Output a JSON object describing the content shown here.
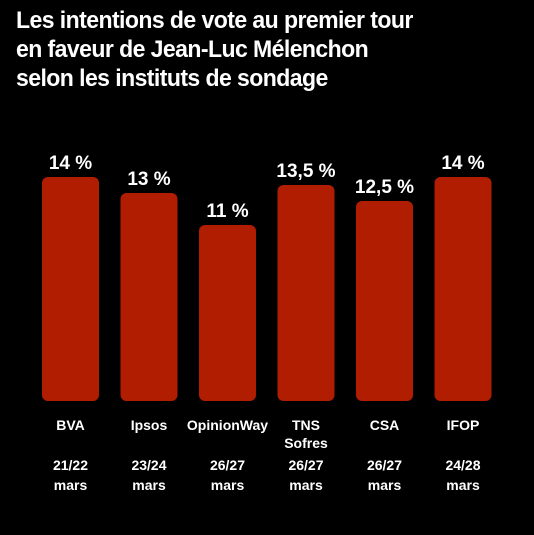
{
  "chart_data": {
    "type": "bar",
    "title": "Les intentions de vote au premier tour\nen faveur de Jean-Luc Mélenchon\nselon les instituts de sondage",
    "categories": [
      [
        "BVA"
      ],
      [
        "Ipsos"
      ],
      [
        "OpinionWay"
      ],
      [
        "TNS",
        "Sofres"
      ],
      [
        "CSA"
      ],
      [
        "IFOP"
      ]
    ],
    "dates": [
      [
        "21/22",
        "mars"
      ],
      [
        "23/24",
        "mars"
      ],
      [
        "26/27",
        "mars"
      ],
      [
        "26/27",
        "mars"
      ],
      [
        "26/27",
        "mars"
      ],
      [
        "24/28",
        "mars"
      ]
    ],
    "values": [
      14,
      13,
      11,
      13.5,
      12.5,
      14
    ],
    "value_labels": [
      "14 %",
      "13 %",
      "11 %",
      "13,5 %",
      "12,5 %",
      "14 %"
    ],
    "xlabel": "",
    "ylabel": "",
    "bar_color": "#b01d00",
    "background": "#000000",
    "text_color": "#ffffff"
  }
}
